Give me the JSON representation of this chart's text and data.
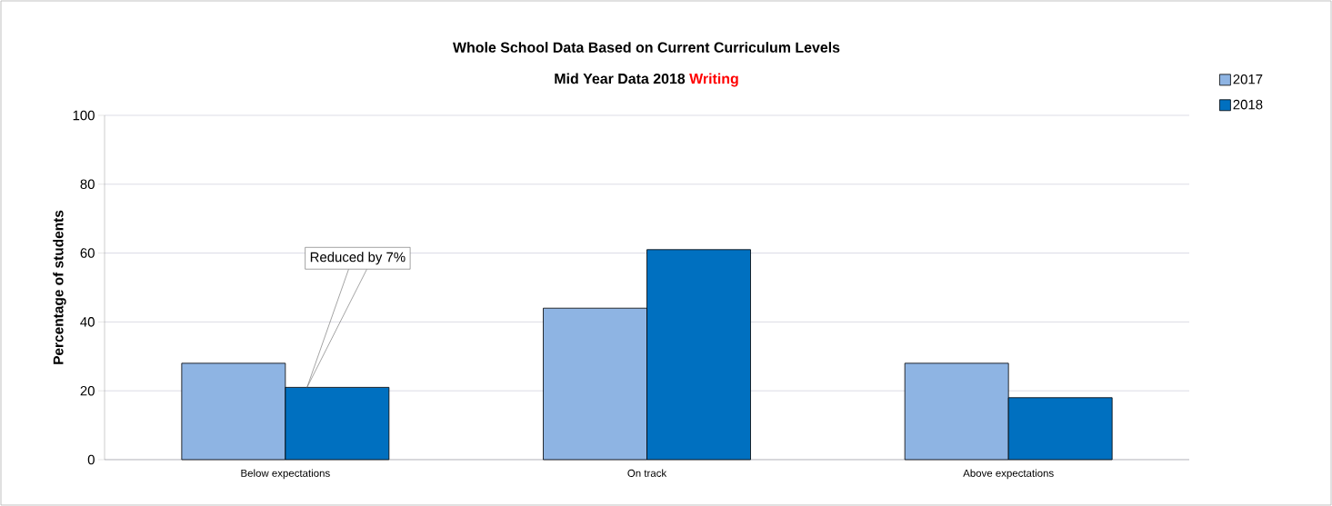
{
  "chart_data": {
    "type": "bar",
    "title": "Whole School Data Based on Current Curriculum Levels",
    "subtitle": "Mid Year Data 2018 **Writing**",
    "ylabel": "Percentage of students",
    "categories": [
      "Below expectations",
      "On track",
      "Above expectations"
    ],
    "series": [
      {
        "name": "2017",
        "color": "#8eb4e3",
        "values": [
          28,
          44,
          28
        ]
      },
      {
        "name": "2018",
        "color": "#0070c0",
        "values": [
          21,
          61,
          18
        ]
      }
    ],
    "ylim": [
      0,
      100
    ],
    "yticks": [
      0,
      20,
      40,
      60,
      80,
      100
    ],
    "grid": "y",
    "legend": "top right",
    "annotations": [
      "Reduced by 7%"
    ]
  }
}
